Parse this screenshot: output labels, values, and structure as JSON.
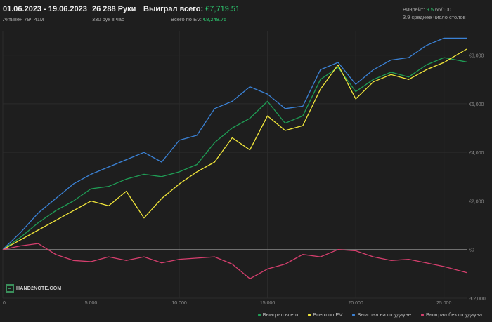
{
  "header": {
    "date_range": "01.06.2023 - 19.06.2023",
    "active_time": "Активен 79ч 41м",
    "hands": "26 288 Руки",
    "hands_per_hour": "330 рук в час",
    "won_total_label": "Выиграл всего:",
    "won_total_value": "€7,719.51",
    "ev_label": "Всего по EV:",
    "ev_value": "€8,248.75",
    "winrate_label": "Винрейт:",
    "winrate_value": "9.5",
    "winrate_unit": "66/100",
    "avg_tables": "3.9 среднее число столов"
  },
  "logo_text": "HAND2NOTE.COM",
  "colors": {
    "background": "#1e1e1e",
    "grid": "#2c2c2c",
    "won_total": "#1f9d55",
    "ev": "#f1e63a",
    "showdown": "#3b82d6",
    "non_showdown": "#d63f6e"
  },
  "chart_data": {
    "type": "line",
    "x_unit": "hands",
    "y_unit": "€",
    "xlim": [
      0,
      26288
    ],
    "ylim": [
      -2000,
      9000
    ],
    "x_ticks": [
      0,
      5000,
      10000,
      15000,
      20000,
      25000
    ],
    "x_tick_labels": [
      "0",
      "5 000",
      "10 000",
      "15 000",
      "20 000",
      "25 000"
    ],
    "y_ticks": [
      -2000,
      0,
      2000,
      4000,
      6000,
      8000
    ],
    "y_tick_labels": [
      "-€2,000",
      "€0",
      "€2,000",
      "€4,000",
      "€6,000",
      "€8,000"
    ],
    "legend_position": "bottom-right",
    "series": [
      {
        "name": "Выиграл всего",
        "color": "#1f9d55",
        "x": [
          0,
          1000,
          2000,
          3000,
          4000,
          5000,
          6000,
          7000,
          8000,
          9000,
          10000,
          11000,
          12000,
          13000,
          14000,
          15000,
          16000,
          17000,
          18000,
          19000,
          20000,
          21000,
          22000,
          23000,
          24000,
          25000,
          26288
        ],
        "values": [
          0,
          500,
          1100,
          1600,
          2000,
          2500,
          2600,
          2900,
          3100,
          3000,
          3200,
          3500,
          4400,
          5000,
          5400,
          6100,
          5200,
          5500,
          7000,
          7500,
          6500,
          7000,
          7300,
          7100,
          7600,
          7900,
          7720
        ]
      },
      {
        "name": "Всего по EV",
        "color": "#f1e63a",
        "x": [
          0,
          1000,
          2000,
          3000,
          4000,
          5000,
          6000,
          7000,
          8000,
          9000,
          10000,
          11000,
          12000,
          13000,
          14000,
          15000,
          16000,
          17000,
          18000,
          19000,
          20000,
          21000,
          22000,
          23000,
          24000,
          25000,
          26288
        ],
        "values": [
          0,
          400,
          800,
          1200,
          1600,
          2000,
          1800,
          2400,
          1300,
          2100,
          2700,
          3200,
          3600,
          4600,
          4100,
          5500,
          4900,
          5100,
          6600,
          7600,
          6200,
          6900,
          7200,
          7000,
          7400,
          7700,
          8249
        ]
      },
      {
        "name": "Выиграл на шоудауне",
        "color": "#3b82d6",
        "x": [
          0,
          1000,
          2000,
          3000,
          4000,
          5000,
          6000,
          7000,
          8000,
          9000,
          10000,
          11000,
          12000,
          13000,
          14000,
          15000,
          16000,
          17000,
          18000,
          19000,
          20000,
          21000,
          22000,
          23000,
          24000,
          25000,
          26288
        ],
        "values": [
          0,
          700,
          1500,
          2100,
          2700,
          3100,
          3400,
          3700,
          4000,
          3600,
          4500,
          4700,
          5800,
          6100,
          6700,
          6400,
          5800,
          5900,
          7400,
          7700,
          6800,
          7400,
          7800,
          7900,
          8400,
          8700,
          8700
        ]
      },
      {
        "name": "Выиграл без шоудауна",
        "color": "#d63f6e",
        "x": [
          0,
          1000,
          2000,
          3000,
          4000,
          5000,
          6000,
          7000,
          8000,
          9000,
          10000,
          11000,
          12000,
          13000,
          14000,
          15000,
          16000,
          17000,
          18000,
          19000,
          20000,
          21000,
          22000,
          23000,
          24000,
          25000,
          26288
        ],
        "values": [
          0,
          150,
          250,
          -200,
          -450,
          -500,
          -300,
          -450,
          -300,
          -550,
          -400,
          -350,
          -300,
          -600,
          -1200,
          -800,
          -600,
          -200,
          -300,
          0,
          -50,
          -300,
          -450,
          -400,
          -550,
          -700,
          -950
        ]
      }
    ]
  }
}
